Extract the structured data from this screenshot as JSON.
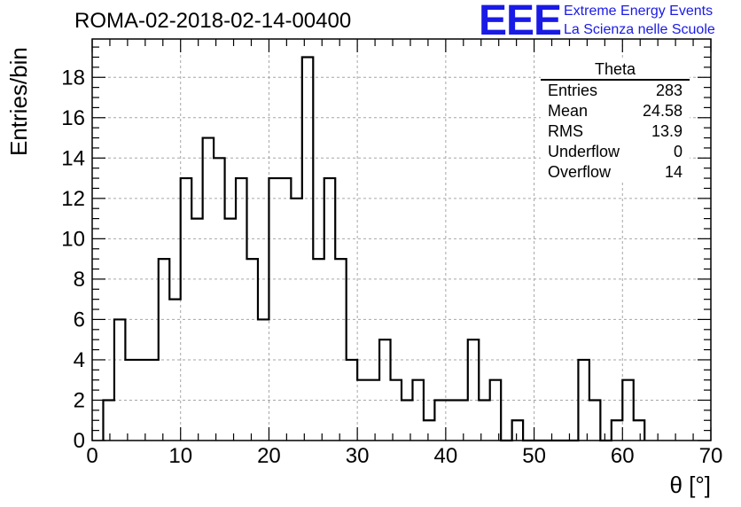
{
  "header": {
    "title": "ROMA-02-2018-02-14-00400",
    "logo": "EEE",
    "logo_line1": "Extreme Energy Events",
    "logo_line2": "La Scienza nelle Scuole"
  },
  "stats_box": {
    "title": "Theta",
    "rows": [
      {
        "label": "Entries",
        "value": "283"
      },
      {
        "label": "Mean",
        "value": "24.58"
      },
      {
        "label": "RMS",
        "value": "13.9"
      },
      {
        "label": "Underflow",
        "value": "0"
      },
      {
        "label": "Overflow",
        "value": "14"
      }
    ]
  },
  "chart_data": {
    "type": "bar",
    "histogram": true,
    "title": "ROMA-02-2018-02-14-00400",
    "xlabel": "θ [°]",
    "ylabel": "Entries/bin",
    "xlim": [
      0,
      70
    ],
    "ylim": [
      0,
      19.9
    ],
    "x_ticks": [
      0,
      10,
      20,
      30,
      40,
      50,
      60,
      70
    ],
    "y_ticks": [
      0,
      2,
      4,
      6,
      8,
      10,
      12,
      14,
      16,
      18
    ],
    "grid": true,
    "bin_width": 1.25,
    "bins_start": 1.25,
    "values": [
      2,
      6,
      4,
      4,
      4,
      9,
      7,
      13,
      11,
      15,
      14,
      11,
      13,
      9,
      6,
      13,
      13,
      12,
      19,
      9,
      13,
      9,
      4,
      3,
      3,
      5,
      3,
      2,
      3,
      1,
      2,
      2,
      2,
      5,
      2,
      3,
      0,
      1,
      0,
      0,
      0,
      0,
      0,
      4,
      2,
      0,
      1,
      3,
      1
    ],
    "colors": {
      "line": "#000000",
      "grid": "#a6a6a6",
      "logo": "#1a1ae6"
    }
  }
}
